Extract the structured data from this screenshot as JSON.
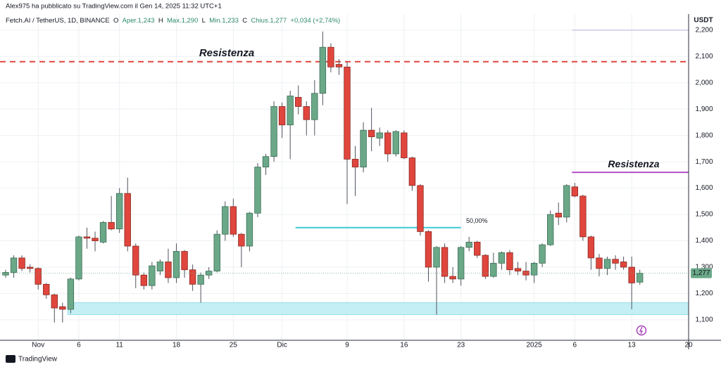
{
  "publisher": "Alex975 ha pubblicato su TradingView.com il Gen 14, 2025 11:32 UTC+1",
  "brand": "TradingView",
  "chart_data": {
    "type": "candlestick",
    "legend": {
      "symbol": "Fetch.AI / TetherUS, 1D, BINANCE",
      "items": [
        {
          "key": "O",
          "value": "Aper.1,243"
        },
        {
          "key": "H",
          "value": "Max.1,290"
        },
        {
          "key": "L",
          "value": "Min.1,233"
        },
        {
          "key": "C",
          "value": "Chius.1,277"
        }
      ],
      "change": "+0,034 (+2,74%)"
    },
    "currency": "USDT",
    "last_price_label": "1,277",
    "up_color": "#6aa888",
    "down_color": "#e0463d",
    "categories": [
      null,
      null,
      null,
      null,
      "Nov",
      null,
      null,
      null,
      null,
      "6",
      null,
      null,
      null,
      null,
      "11",
      null,
      null,
      null,
      null,
      null,
      null,
      "18",
      null,
      null,
      null,
      null,
      null,
      null,
      "25",
      null,
      null,
      null,
      null,
      null,
      "Dic",
      null,
      null,
      null,
      null,
      null,
      null,
      null,
      "9",
      null,
      null,
      null,
      null,
      null,
      null,
      "16",
      null,
      null,
      null,
      null,
      null,
      null,
      "23",
      null,
      null,
      null,
      null,
      null,
      null,
      null,
      null,
      "2025",
      null,
      null,
      null,
      null,
      "6",
      null,
      null,
      null,
      null,
      null,
      null,
      "13",
      null,
      null,
      null,
      null,
      null,
      null,
      "20"
    ],
    "open": [
      1270,
      1280,
      1335,
      1300,
      1295,
      1235,
      1195,
      1150,
      1140,
      1255,
      1415,
      1410,
      1395,
      1470,
      1445,
      1580,
      1380,
      1270,
      1230,
      1285,
      1320,
      1260,
      1360,
      1290,
      1235,
      1270,
      1285,
      1425,
      1530,
      1425,
      1380,
      1505,
      1680,
      1720,
      1910,
      1840,
      1945,
      1910,
      1860,
      1960,
      2135,
      2070,
      2060,
      1710,
      1680,
      1820,
      1790,
      1810,
      1730,
      1810,
      1715,
      1610,
      1435,
      1300,
      1375,
      1265,
      1255,
      1375,
      1395,
      1345,
      1265,
      1315,
      1355,
      1295,
      1285,
      1270,
      1315,
      1385,
      1505,
      1490,
      1605,
      1570,
      1415,
      1335,
      1295,
      1330,
      1320,
      1300,
      1243,
      null,
      null,
      null,
      null,
      null,
      null
    ],
    "high": [
      1290,
      1345,
      1345,
      1310,
      1300,
      1240,
      1200,
      1165,
      1260,
      1420,
      1450,
      1435,
      1475,
      1570,
      1600,
      1640,
      1390,
      1280,
      1320,
      1330,
      1370,
      1390,
      1365,
      1310,
      1280,
      1300,
      1440,
      1550,
      1560,
      1430,
      1510,
      1695,
      1730,
      1930,
      1925,
      1970,
      1990,
      1930,
      2010,
      2195,
      2150,
      2090,
      2080,
      1760,
      1850,
      1905,
      1830,
      1820,
      1820,
      1820,
      1720,
      1615,
      1440,
      1380,
      1390,
      1300,
      1380,
      1415,
      1400,
      1350,
      1355,
      1360,
      1365,
      1320,
      1320,
      1320,
      1390,
      1515,
      1545,
      1615,
      1620,
      1575,
      1420,
      1350,
      1340,
      1345,
      1340,
      1340,
      1290,
      null,
      null,
      null,
      null,
      null,
      null
    ],
    "low": [
      1260,
      1260,
      1285,
      1280,
      1215,
      1180,
      1090,
      1090,
      1125,
      1250,
      1370,
      1360,
      1390,
      1440,
      1430,
      1360,
      1220,
      1215,
      1215,
      1270,
      1240,
      1240,
      1260,
      1210,
      1165,
      1255,
      1280,
      1400,
      1415,
      1300,
      1360,
      1490,
      1650,
      1700,
      1790,
      1710,
      1880,
      1800,
      1800,
      1915,
      2040,
      2030,
      1540,
      1570,
      1660,
      1740,
      1760,
      1700,
      1720,
      1710,
      1590,
      1420,
      1245,
      1120,
      1240,
      1240,
      1230,
      1360,
      1335,
      1255,
      1260,
      1290,
      1270,
      1270,
      1250,
      1240,
      1300,
      1380,
      1460,
      1470,
      1565,
      1400,
      1290,
      1265,
      1270,
      1290,
      1290,
      1140,
      1233,
      null,
      null,
      null,
      null,
      null,
      null
    ],
    "close": [
      1280,
      1335,
      1295,
      1295,
      1235,
      1195,
      1145,
      1140,
      1255,
      1415,
      1410,
      1400,
      1470,
      1445,
      1580,
      1380,
      1270,
      1230,
      1305,
      1320,
      1260,
      1360,
      1290,
      1235,
      1270,
      1285,
      1425,
      1530,
      1425,
      1380,
      1505,
      1680,
      1720,
      1910,
      1840,
      1950,
      1910,
      1860,
      1960,
      2135,
      2060,
      2060,
      1710,
      1680,
      1820,
      1795,
      1810,
      1730,
      1815,
      1715,
      1610,
      1435,
      1300,
      1375,
      1265,
      1255,
      1375,
      1395,
      1345,
      1265,
      1315,
      1355,
      1290,
      1285,
      1270,
      1315,
      1385,
      1500,
      1490,
      1610,
      1570,
      1415,
      1335,
      1295,
      1330,
      1315,
      1300,
      1240,
      1277,
      null,
      null,
      null,
      null,
      null,
      null
    ],
    "ylim": [
      1025,
      2261
    ],
    "yticks": [
      {
        "value": 1100,
        "label": "1,100"
      },
      {
        "value": 1200,
        "label": "1,200"
      },
      {
        "value": 1300,
        "label": "1,300"
      },
      {
        "value": 1400,
        "label": "1,400"
      },
      {
        "value": 1500,
        "label": "1,500"
      },
      {
        "value": 1600,
        "label": "1,600"
      },
      {
        "value": 1700,
        "label": "1,700"
      },
      {
        "value": 1800,
        "label": "1,800"
      },
      {
        "value": 1900,
        "label": "1,900"
      },
      {
        "value": 2000,
        "label": "2,000"
      },
      {
        "value": 2100,
        "label": "2,100"
      },
      {
        "value": 2200,
        "label": "2,200"
      }
    ],
    "grid": true,
    "annotations": [
      {
        "type": "hline",
        "label": "Resistenza",
        "value": 2080,
        "color": "#e0463d",
        "dashed": true
      },
      {
        "type": "hline",
        "label": "Resistenza",
        "value": 1660,
        "color": "#b450c8"
      },
      {
        "type": "hline",
        "value": 2200,
        "color": "#c9bde3"
      },
      {
        "type": "hline",
        "label": "50,00%",
        "value": 1450,
        "color": "#3dc9d6"
      },
      {
        "type": "zone",
        "low": 1120,
        "high": 1165,
        "color": "#c4eff4"
      }
    ]
  }
}
